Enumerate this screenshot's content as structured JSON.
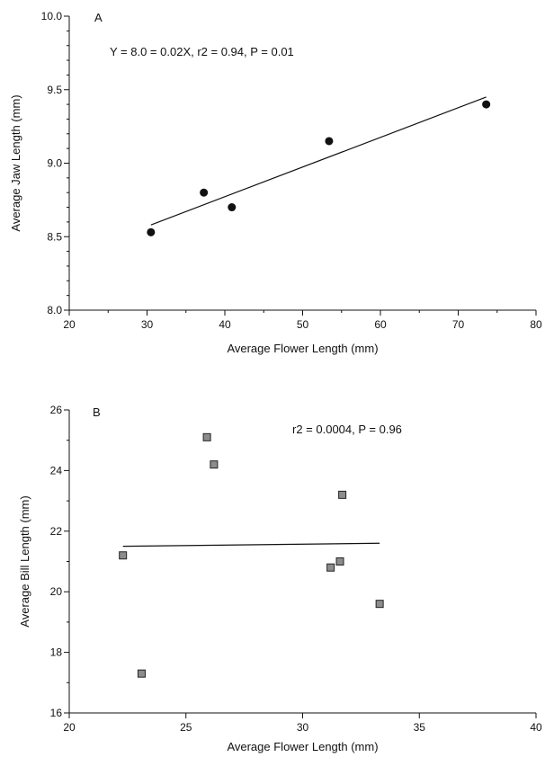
{
  "chart_data": [
    {
      "type": "scatter",
      "panel_label": "A",
      "annotation": "Y = 8.0 = 0.02X, r2 = 0.94, P = 0.01",
      "xlabel": "Average Flower Length (mm)",
      "ylabel": "Average Jaw Length (mm)",
      "xlim": [
        20,
        80
      ],
      "ylim": [
        8.0,
        10.0
      ],
      "x_ticks": [
        "20",
        "30",
        "40",
        "50",
        "60",
        "70",
        "80"
      ],
      "y_ticks": [
        "8.0",
        "8.5",
        "9.0",
        "9.5",
        "10.0"
      ],
      "marker": "circle",
      "marker_color": "#111111",
      "points": [
        {
          "x": 30.5,
          "y": 8.53
        },
        {
          "x": 37.3,
          "y": 8.8
        },
        {
          "x": 40.9,
          "y": 8.7
        },
        {
          "x": 53.4,
          "y": 9.15
        },
        {
          "x": 73.6,
          "y": 9.4
        }
      ],
      "fit_line": {
        "x": [
          30.5,
          73.6
        ],
        "y": [
          8.58,
          9.45
        ]
      }
    },
    {
      "type": "scatter",
      "panel_label": "B",
      "annotation": "r2 = 0.0004, P = 0.96",
      "xlabel": "Average Flower Length (mm)",
      "ylabel": "Average Bill Length (mm)",
      "xlim": [
        20,
        40
      ],
      "ylim": [
        16,
        26
      ],
      "x_ticks": [
        "20",
        "25",
        "30",
        "35",
        "40"
      ],
      "y_ticks": [
        "16",
        "18",
        "20",
        "22",
        "24",
        "26"
      ],
      "marker": "square",
      "marker_color": "#8c8c8c",
      "points": [
        {
          "x": 22.3,
          "y": 21.2
        },
        {
          "x": 23.1,
          "y": 17.3
        },
        {
          "x": 25.9,
          "y": 25.1
        },
        {
          "x": 26.2,
          "y": 24.2
        },
        {
          "x": 31.2,
          "y": 20.8
        },
        {
          "x": 31.6,
          "y": 21.0
        },
        {
          "x": 31.7,
          "y": 23.2
        },
        {
          "x": 33.3,
          "y": 19.6
        }
      ],
      "fit_line": {
        "x": [
          22.3,
          33.3
        ],
        "y": [
          21.5,
          21.6
        ]
      }
    }
  ]
}
